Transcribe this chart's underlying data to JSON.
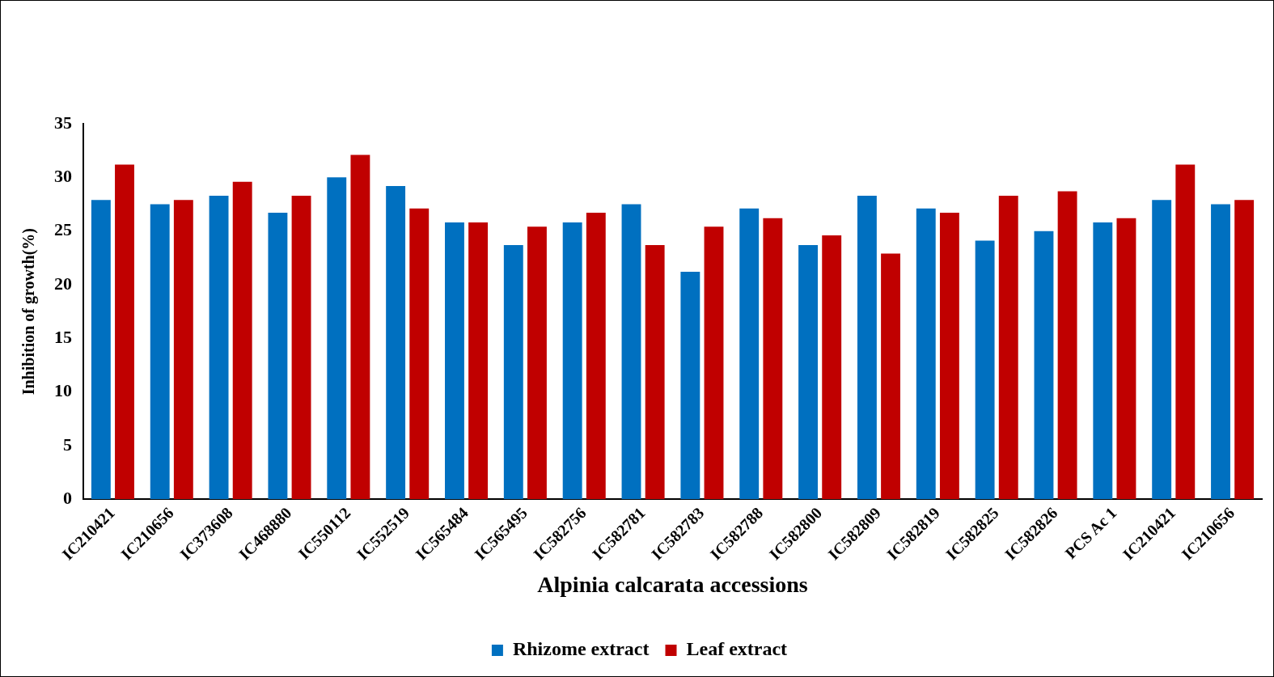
{
  "chart_data": {
    "type": "bar",
    "xlabel": "Alpinia calcarata accessions",
    "ylabel": "Inhibition of growth(%)",
    "categories": [
      "IC210421",
      "IC210656",
      "IC373608",
      "IC468880",
      "IC550112",
      "IC552519",
      "IC565484",
      "IC565495",
      "IC582756",
      "IC582781",
      "IC582783",
      "IC582788",
      "IC582800",
      "IC582809",
      "IC582819",
      "IC582825",
      "IC582826",
      "PCS Ac 1",
      "IC210421",
      "IC210656"
    ],
    "series": [
      {
        "name": "Rhizome extract",
        "color": "#0070c0",
        "values": [
          27.9,
          27.5,
          28.3,
          26.7,
          30.0,
          29.2,
          25.8,
          23.7,
          25.8,
          27.5,
          21.2,
          27.1,
          23.7,
          28.3,
          27.1,
          24.1,
          25.0,
          25.8,
          27.9,
          27.5
        ]
      },
      {
        "name": "Leaf extract",
        "color": "#c00000",
        "values": [
          31.2,
          27.9,
          29.6,
          28.3,
          32.1,
          27.1,
          25.8,
          25.4,
          26.7,
          23.7,
          25.4,
          26.2,
          24.6,
          22.9,
          26.7,
          28.3,
          28.7,
          26.2,
          31.2,
          27.9
        ]
      }
    ],
    "ylim": [
      0,
      35
    ],
    "yticks": [
      0,
      5,
      10,
      15,
      20,
      25,
      30,
      35
    ],
    "grid": false,
    "legend": "bottom"
  }
}
